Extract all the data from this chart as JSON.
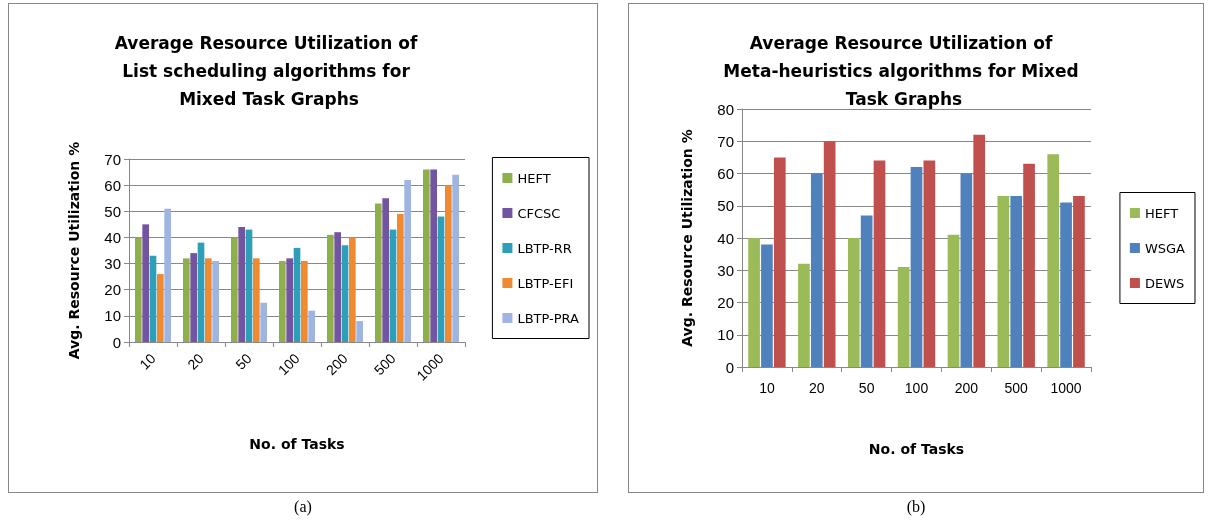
{
  "chart_data": [
    {
      "type": "bar",
      "title": "Average Resource Utilization of List scheduling algorithms for Mixed Task Graphs",
      "xlabel": "No. of Tasks",
      "ylabel": "Avg. Resource Utilization %",
      "categories": [
        "10",
        "20",
        "50",
        "100",
        "200",
        "500",
        "1000"
      ],
      "series": [
        {
          "name": "HEFT",
          "color": "#8db04c",
          "values": [
            40,
            32,
            40,
            31,
            41,
            53,
            66
          ]
        },
        {
          "name": "CFCSC",
          "color": "#7254a0",
          "values": [
            45,
            34,
            44,
            32,
            42,
            55,
            66
          ]
        },
        {
          "name": "LBTP-RR",
          "color": "#2e9fb8",
          "values": [
            33,
            38,
            43,
            36,
            37,
            43,
            48
          ]
        },
        {
          "name": "LBTP-EFI",
          "color": "#f08a30",
          "values": [
            26,
            32,
            32,
            31,
            40,
            49,
            60
          ]
        },
        {
          "name": "LBTP-PRA",
          "color": "#9db5e0",
          "values": [
            51,
            31,
            15,
            12,
            8,
            62,
            64
          ]
        }
      ],
      "ylim": [
        0,
        70
      ],
      "yticks": [
        0,
        10,
        20,
        30,
        40,
        50,
        60,
        70
      ],
      "grid": "y",
      "legend": "right",
      "annotations": [
        "(a)"
      ]
    },
    {
      "type": "bar",
      "title": "Average Resource Utilization of Meta-heuristics algorithms for Mixed Task Graphs",
      "xlabel": "No. of Tasks",
      "ylabel": "Avg. Resource Utilization %",
      "categories": [
        "10",
        "20",
        "50",
        "100",
        "200",
        "500",
        "1000"
      ],
      "series": [
        {
          "name": "HEFT",
          "color": "#9bbb59",
          "values": [
            40,
            32,
            40,
            31,
            41,
            53,
            66
          ]
        },
        {
          "name": "WSGA",
          "color": "#4f81bd",
          "values": [
            38,
            60,
            47,
            62,
            60,
            53,
            51
          ]
        },
        {
          "name": "DEWS",
          "color": "#c0504d",
          "values": [
            65,
            70,
            64,
            64,
            72,
            63,
            53
          ]
        }
      ],
      "ylim": [
        0,
        80
      ],
      "yticks": [
        0,
        10,
        20,
        30,
        40,
        50,
        60,
        70,
        80
      ],
      "grid": "y",
      "legend": "right",
      "annotations": [
        "(b)"
      ]
    }
  ]
}
